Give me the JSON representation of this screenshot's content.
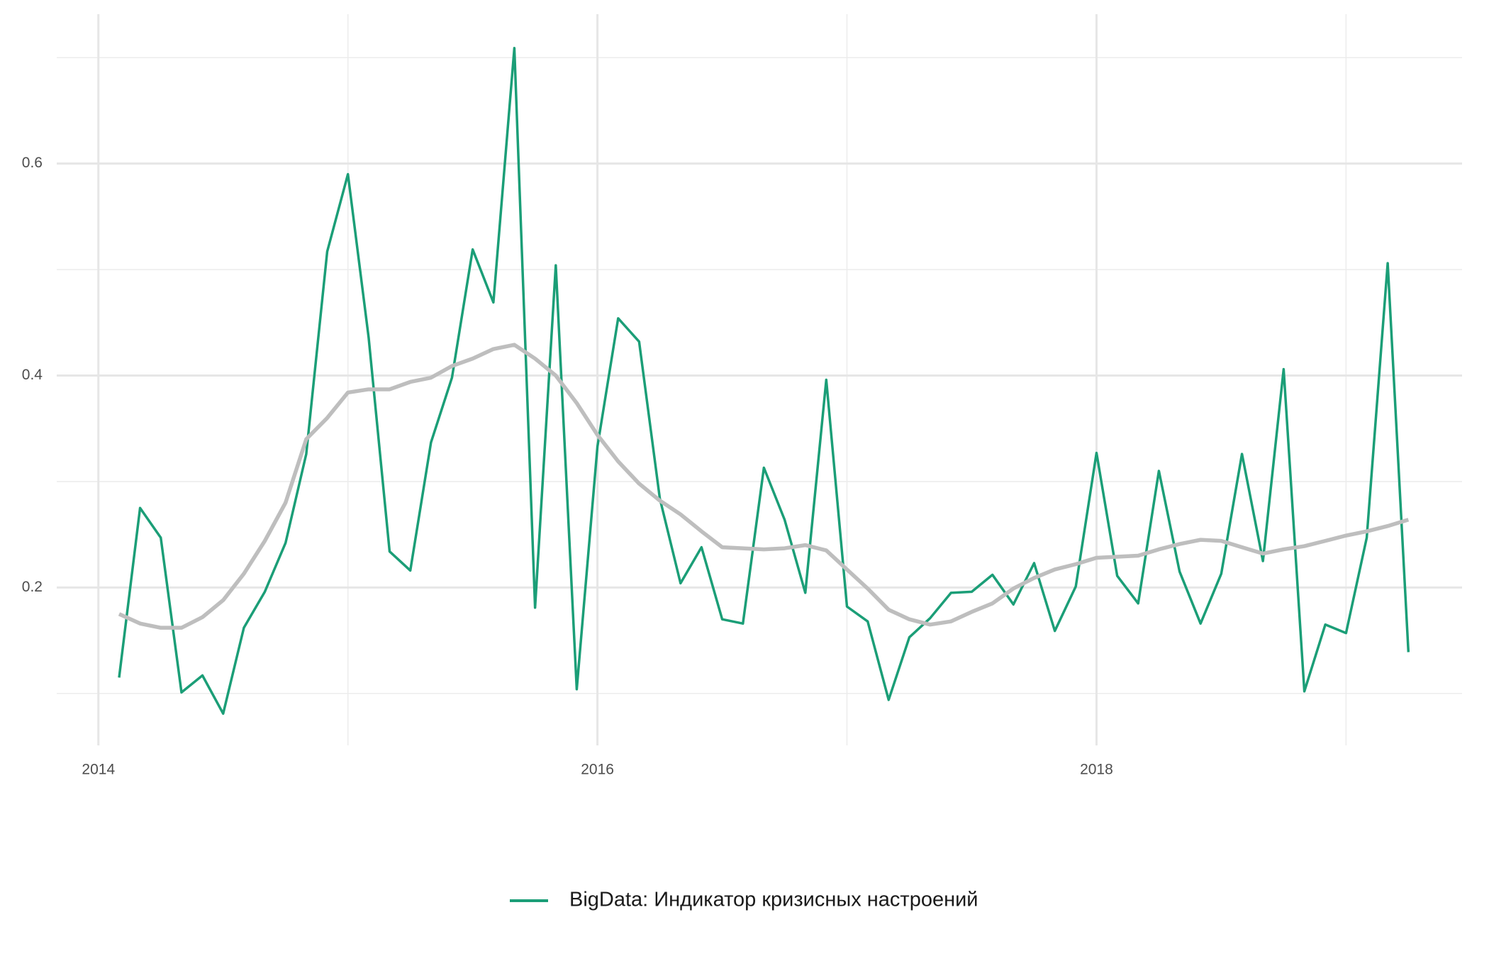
{
  "chart_data": {
    "type": "line",
    "x": [
      2014.083,
      2014.167,
      2014.25,
      2014.333,
      2014.417,
      2014.5,
      2014.583,
      2014.667,
      2014.75,
      2014.833,
      2014.917,
      2015,
      2015.083,
      2015.167,
      2015.25,
      2015.333,
      2015.417,
      2015.5,
      2015.583,
      2015.667,
      2015.75,
      2015.833,
      2015.917,
      2016,
      2016.083,
      2016.167,
      2016.25,
      2016.333,
      2016.417,
      2016.5,
      2016.583,
      2016.667,
      2016.75,
      2016.833,
      2016.917,
      2017,
      2017.083,
      2017.167,
      2017.25,
      2017.333,
      2017.417,
      2017.5,
      2017.583,
      2017.667,
      2017.75,
      2017.833,
      2017.917,
      2018,
      2018.083,
      2018.167,
      2018.25,
      2018.333,
      2018.417,
      2018.5,
      2018.583,
      2018.667,
      2018.75,
      2018.833,
      2018.917,
      2019,
      2019.083,
      2019.167,
      2019.25
    ],
    "series": [
      {
        "name": "BigData: Индикатор кризисных настроений",
        "color": "#1b9e77",
        "values": [
          0.115,
          0.275,
          0.247,
          0.101,
          0.117,
          0.081,
          0.162,
          0.196,
          0.242,
          0.326,
          0.517,
          0.59,
          0.436,
          0.234,
          0.216,
          0.337,
          0.398,
          0.519,
          0.469,
          0.709,
          0.181,
          0.504,
          0.104,
          0.333,
          0.454,
          0.432,
          0.284,
          0.204,
          0.238,
          0.17,
          0.166,
          0.313,
          0.264,
          0.195,
          0.396,
          0.182,
          0.168,
          0.094,
          0.153,
          0.171,
          0.195,
          0.196,
          0.212,
          0.184,
          0.223,
          0.159,
          0.201,
          0.327,
          0.211,
          0.185,
          0.31,
          0.215,
          0.166,
          0.213,
          0.326,
          0.225,
          0.406,
          0.102,
          0.165,
          0.157,
          0.247,
          0.506,
          0.139
        ]
      }
    ],
    "trend": {
      "color": "#bebebe",
      "values": [
        0.175,
        0.166,
        0.162,
        0.162,
        0.172,
        0.188,
        0.213,
        0.244,
        0.28,
        0.34,
        0.36,
        0.384,
        0.387,
        0.387,
        0.394,
        0.398,
        0.409,
        0.416,
        0.425,
        0.429,
        0.416,
        0.4,
        0.374,
        0.344,
        0.319,
        0.298,
        0.282,
        0.269,
        0.253,
        0.238,
        0.237,
        0.236,
        0.237,
        0.24,
        0.235,
        0.217,
        0.199,
        0.179,
        0.17,
        0.165,
        0.168,
        0.177,
        0.185,
        0.199,
        0.209,
        0.217,
        0.222,
        0.228,
        0.229,
        0.23,
        0.236,
        0.241,
        0.245,
        0.244,
        0.238,
        0.232,
        0.236,
        0.239,
        0.244,
        0.249,
        0.253,
        0.258,
        0.264
      ]
    },
    "xlim": [
      2013.833,
      2019.465
    ],
    "ylim": [
      0.051,
      0.741
    ],
    "xticks": [
      2014,
      2016,
      2018
    ],
    "yticks": [
      0.2,
      0.4,
      0.6
    ],
    "xminor_grid": [
      2015,
      2017,
      2019
    ],
    "yminor_grid": [
      0.1,
      0.3,
      0.5,
      0.7
    ],
    "grid": true,
    "legend": "bottom"
  }
}
